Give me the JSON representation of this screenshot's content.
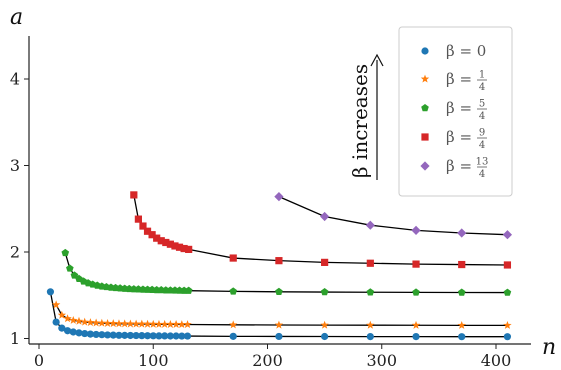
{
  "chart_data": {
    "type": "scatter",
    "xlabel": "n",
    "ylabel": "a",
    "xlim": [
      -2,
      420
    ],
    "ylim": [
      0.95,
      4.5
    ],
    "x_ticks": [
      0,
      100,
      200,
      300,
      400
    ],
    "y_ticks": [
      1,
      2,
      3,
      4
    ],
    "grid": false,
    "legend_position": "top-right",
    "annotation": "β increases",
    "fit_curves": "black solid lines through each series",
    "series": [
      {
        "name": "β = 0",
        "beta_label": {
          "symbol": "β",
          "eq": "=",
          "whole": "0"
        },
        "color": "#1f77b4",
        "marker": "circle",
        "x": [
          10,
          15,
          20,
          25,
          30,
          35,
          40,
          45,
          50,
          55,
          60,
          65,
          70,
          75,
          80,
          85,
          90,
          95,
          100,
          105,
          110,
          115,
          120,
          125,
          130,
          170,
          210,
          250,
          290,
          330,
          370,
          410
        ],
        "y": [
          1.54,
          1.19,
          1.12,
          1.09,
          1.075,
          1.065,
          1.057,
          1.051,
          1.047,
          1.044,
          1.041,
          1.039,
          1.037,
          1.036,
          1.035,
          1.034,
          1.033,
          1.032,
          1.031,
          1.03,
          1.03,
          1.029,
          1.029,
          1.028,
          1.028,
          1.025,
          1.024,
          1.023,
          1.022,
          1.022,
          1.021,
          1.021
        ]
      },
      {
        "name": "β = 1/4",
        "beta_label": {
          "symbol": "β",
          "eq": "=",
          "num": "1",
          "den": "4"
        },
        "color": "#ff7f0e",
        "marker": "star",
        "x": [
          15,
          20,
          25,
          30,
          35,
          40,
          45,
          50,
          55,
          60,
          65,
          70,
          75,
          80,
          85,
          90,
          95,
          100,
          105,
          110,
          115,
          120,
          125,
          130,
          170,
          210,
          250,
          290,
          330,
          370,
          410
        ],
        "y": [
          1.39,
          1.27,
          1.23,
          1.21,
          1.2,
          1.19,
          1.185,
          1.18,
          1.178,
          1.175,
          1.173,
          1.171,
          1.17,
          1.169,
          1.168,
          1.167,
          1.166,
          1.165,
          1.164,
          1.164,
          1.163,
          1.163,
          1.162,
          1.162,
          1.158,
          1.156,
          1.155,
          1.154,
          1.153,
          1.152,
          1.152
        ]
      },
      {
        "name": "β = 5/4",
        "beta_label": {
          "symbol": "β",
          "eq": "=",
          "num": "5",
          "den": "4"
        },
        "color": "#2ca02c",
        "marker": "pentagon",
        "x": [
          23,
          27,
          31,
          35,
          39,
          43,
          47,
          51,
          55,
          59,
          63,
          67,
          71,
          75,
          79,
          83,
          87,
          91,
          95,
          99,
          103,
          107,
          111,
          115,
          119,
          123,
          127,
          131,
          170,
          210,
          250,
          290,
          330,
          370,
          410
        ],
        "y": [
          1.99,
          1.81,
          1.73,
          1.69,
          1.66,
          1.64,
          1.625,
          1.613,
          1.603,
          1.596,
          1.59,
          1.585,
          1.581,
          1.577,
          1.574,
          1.571,
          1.569,
          1.567,
          1.565,
          1.563,
          1.561,
          1.56,
          1.558,
          1.557,
          1.556,
          1.555,
          1.554,
          1.553,
          1.545,
          1.54,
          1.537,
          1.535,
          1.533,
          1.532,
          1.531
        ]
      },
      {
        "name": "β = 9/4",
        "beta_label": {
          "symbol": "β",
          "eq": "=",
          "num": "9",
          "den": "4"
        },
        "color": "#d62728",
        "marker": "square",
        "x": [
          83,
          87,
          91,
          95,
          99,
          103,
          107,
          111,
          115,
          119,
          123,
          127,
          131,
          170,
          210,
          250,
          290,
          330,
          370,
          410
        ],
        "y": [
          2.66,
          2.38,
          2.3,
          2.24,
          2.2,
          2.16,
          2.13,
          2.11,
          2.09,
          2.07,
          2.055,
          2.04,
          2.03,
          1.93,
          1.9,
          1.88,
          1.87,
          1.86,
          1.855,
          1.85
        ]
      },
      {
        "name": "β = 13/4",
        "beta_label": {
          "symbol": "β",
          "eq": "=",
          "num": "13",
          "den": "4"
        },
        "color": "#9467bd",
        "marker": "diamond",
        "x": [
          210,
          250,
          290,
          330,
          370,
          410
        ],
        "y": [
          2.64,
          2.41,
          2.31,
          2.25,
          2.22,
          2.2
        ]
      }
    ]
  }
}
